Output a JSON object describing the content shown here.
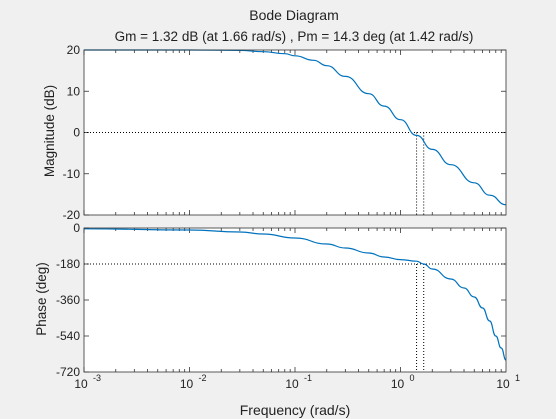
{
  "figure": {
    "title": "Bode Diagram",
    "subtitle": "Gm = 1.32 dB (at 1.66 rad/s) ,  Pm = 14.3 deg (at 1.42 rad/s)",
    "background_color": "#f0f0f0",
    "line_color": "#0072bd"
  },
  "chart_data": [
    {
      "type": "line",
      "title": "Bode Diagram",
      "subtitle": "Gm = 1.32 dB (at 1.66 rad/s) ,  Pm = 14.3 deg (at 1.42 rad/s)",
      "ylabel": "Magnitude (dB)",
      "xlabel": "",
      "xscale": "log",
      "xlim": [
        0.001,
        10
      ],
      "ylim": [
        -20,
        20
      ],
      "yticks": [
        20,
        10,
        0,
        -10,
        -20
      ],
      "yticklabels": [
        "20",
        "10",
        "0",
        "-10",
        "-20"
      ],
      "grid": false,
      "reference_line_y": 0,
      "markers_x": [
        1.42,
        1.66
      ],
      "series": [
        {
          "x": [
            0.001,
            0.01,
            0.03,
            0.05,
            0.08,
            0.1,
            0.15,
            0.2,
            0.3,
            0.5,
            0.7,
            1,
            1.42,
            2,
            3,
            5,
            7,
            10
          ],
          "values": [
            20,
            20,
            19.9,
            19.6,
            19.1,
            18.6,
            17.5,
            16.2,
            13.6,
            9.4,
            6.4,
            3.1,
            -0.7,
            -4.1,
            -7.8,
            -12.2,
            -15.2,
            -17.5
          ]
        }
      ]
    },
    {
      "type": "line",
      "xlabel": "Frequency  (rad/s)",
      "ylabel": "Phase (deg)",
      "xscale": "log",
      "xlim": [
        0.001,
        10
      ],
      "xticklabels": [
        "10",
        "10",
        "10",
        "10",
        "10"
      ],
      "xtickexponents": [
        "-3",
        "-2",
        "-1",
        "0",
        "1"
      ],
      "ylim": [
        -720,
        0
      ],
      "yticks": [
        0,
        -180,
        -360,
        -540,
        -720
      ],
      "yticklabels": [
        "0",
        "-180",
        "-360",
        "-540",
        "-720"
      ],
      "grid": false,
      "reference_line_y": -180,
      "markers_x": [
        1.42,
        1.66
      ],
      "series": [
        {
          "x": [
            0.001,
            0.01,
            0.03,
            0.05,
            0.1,
            0.2,
            0.3,
            0.5,
            0.7,
            1,
            1.42,
            1.66,
            2,
            3,
            4,
            5,
            6,
            7,
            8,
            9,
            10
          ],
          "values": [
            -4,
            -10,
            -20,
            -30,
            -50,
            -80,
            -100,
            -125,
            -145,
            -158,
            -166,
            -180,
            -205,
            -255,
            -300,
            -345,
            -400,
            -465,
            -540,
            -600,
            -660
          ]
        }
      ]
    }
  ]
}
